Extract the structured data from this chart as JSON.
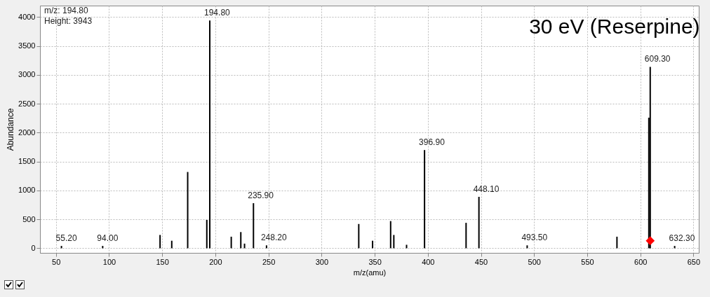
{
  "chart_data": {
    "type": "bar",
    "title": "30 eV (Reserpine)",
    "xlabel": "m/z(amu)",
    "ylabel": "Abundance",
    "annotations": [
      "m/z: 194.80",
      "Height: 3943",
      {
        "text": "55.20",
        "x": 55.2,
        "y": 40
      },
      {
        "text": "94.00",
        "x": 94.0,
        "y": 40
      },
      {
        "text": "194.80",
        "x": 194.8,
        "y": 3943
      },
      {
        "text": "235.90",
        "x": 235.9,
        "y": 780
      },
      {
        "text": "248.20",
        "x": 248.2,
        "y": 50
      },
      {
        "text": "396.90",
        "x": 396.9,
        "y": 1700
      },
      {
        "text": "448.10",
        "x": 448.1,
        "y": 890
      },
      {
        "text": "493.50",
        "x": 493.5,
        "y": 50
      },
      {
        "text": "609.30",
        "x": 609.3,
        "y": 3140
      },
      {
        "text": "632.30",
        "x": 632.3,
        "y": 40
      }
    ],
    "xlim": [
      35,
      655
    ],
    "xticks": [
      50,
      100,
      150,
      200,
      250,
      300,
      350,
      400,
      450,
      500,
      550,
      600,
      650
    ],
    "ylim": [
      -80,
      4200
    ],
    "yticks": [
      0,
      500,
      1000,
      1500,
      2000,
      2500,
      3000,
      3500,
      4000
    ],
    "grid": true,
    "series": [
      {
        "color": "#000000",
        "x": [
          55.2,
          94.0,
          148,
          159,
          174,
          192,
          194.8,
          215,
          224,
          227.5,
          235.9,
          248.2,
          335,
          348,
          365,
          368,
          380,
          396.9,
          436,
          448.1,
          493.5,
          578,
          608.0,
          609.3,
          632.3
        ],
        "values": [
          40,
          40,
          230,
          130,
          1320,
          490,
          3943,
          200,
          280,
          80,
          780,
          50,
          420,
          130,
          470,
          230,
          60,
          1700,
          440,
          890,
          50,
          200,
          2260,
          3140,
          40
        ]
      },
      {
        "type": "scatter",
        "color": "#ff0000",
        "marker": "diamond",
        "x": [
          609.3
        ],
        "values": [
          130
        ]
      }
    ]
  }
}
